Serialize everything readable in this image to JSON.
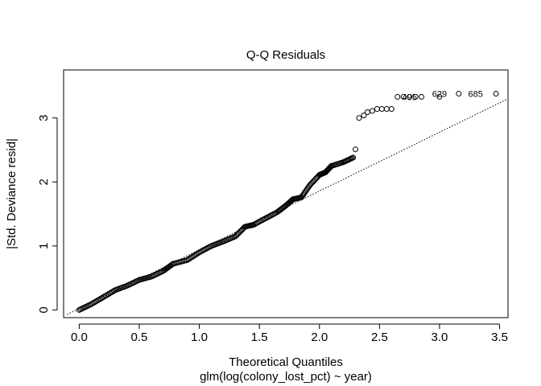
{
  "chart_data": {
    "type": "scatter",
    "title": "Q-Q Residuals",
    "xlabel": "Theoretical Quantiles",
    "subtitle": "glm(log(colony_lost_pct) ~ year)",
    "ylabel": "|Std. Deviance resid|",
    "xlim": [
      -0.13,
      3.57
    ],
    "ylim": [
      -0.12,
      3.75
    ],
    "xticks": [
      0.0,
      0.5,
      1.0,
      1.5,
      2.0,
      2.5,
      3.0,
      3.5
    ],
    "xtick_labels": [
      "0.0",
      "0.5",
      "1.0",
      "1.5",
      "2.0",
      "2.5",
      "3.0",
      "3.5"
    ],
    "yticks": [
      0,
      1,
      2,
      3
    ],
    "ytick_labels": [
      "0",
      "1",
      "2",
      "3"
    ],
    "reference_line": {
      "style": "dotted",
      "points": [
        [
          -0.1,
          -0.07
        ],
        [
          3.57,
          3.3
        ]
      ]
    },
    "curve": [
      [
        0.0,
        0.0
      ],
      [
        0.1,
        0.09
      ],
      [
        0.2,
        0.2
      ],
      [
        0.3,
        0.31
      ],
      [
        0.4,
        0.38
      ],
      [
        0.5,
        0.47
      ],
      [
        0.6,
        0.52
      ],
      [
        0.7,
        0.61
      ],
      [
        0.78,
        0.72
      ],
      [
        0.9,
        0.78
      ],
      [
        1.0,
        0.9
      ],
      [
        1.1,
        1.0
      ],
      [
        1.2,
        1.07
      ],
      [
        1.3,
        1.15
      ],
      [
        1.38,
        1.3
      ],
      [
        1.45,
        1.33
      ],
      [
        1.55,
        1.43
      ],
      [
        1.65,
        1.53
      ],
      [
        1.72,
        1.63
      ],
      [
        1.78,
        1.73
      ],
      [
        1.85,
        1.76
      ],
      [
        1.92,
        1.95
      ],
      [
        2.0,
        2.11
      ],
      [
        2.05,
        2.15
      ],
      [
        2.1,
        2.25
      ],
      [
        2.2,
        2.31
      ],
      [
        2.28,
        2.38
      ]
    ],
    "tail_points": [
      [
        2.3,
        2.51
      ],
      [
        2.33,
        3.0
      ],
      [
        2.37,
        3.04
      ],
      [
        2.4,
        3.09
      ],
      [
        2.44,
        3.11
      ],
      [
        2.48,
        3.14
      ],
      [
        2.52,
        3.14
      ],
      [
        2.56,
        3.14
      ],
      [
        2.6,
        3.14
      ],
      [
        2.65,
        3.33
      ],
      [
        2.7,
        3.33
      ],
      [
        2.75,
        3.33
      ],
      [
        2.8,
        3.33
      ],
      [
        2.85,
        3.33
      ],
      [
        3.0,
        3.33
      ],
      [
        3.16,
        3.38
      ],
      [
        3.47,
        3.38
      ]
    ],
    "point_labels": [
      {
        "text": "495",
        "x": 2.75,
        "y": 3.33
      },
      {
        "text": "629",
        "x": 3.0,
        "y": 3.38
      },
      {
        "text": "685",
        "x": 3.3,
        "y": 3.38
      }
    ]
  }
}
